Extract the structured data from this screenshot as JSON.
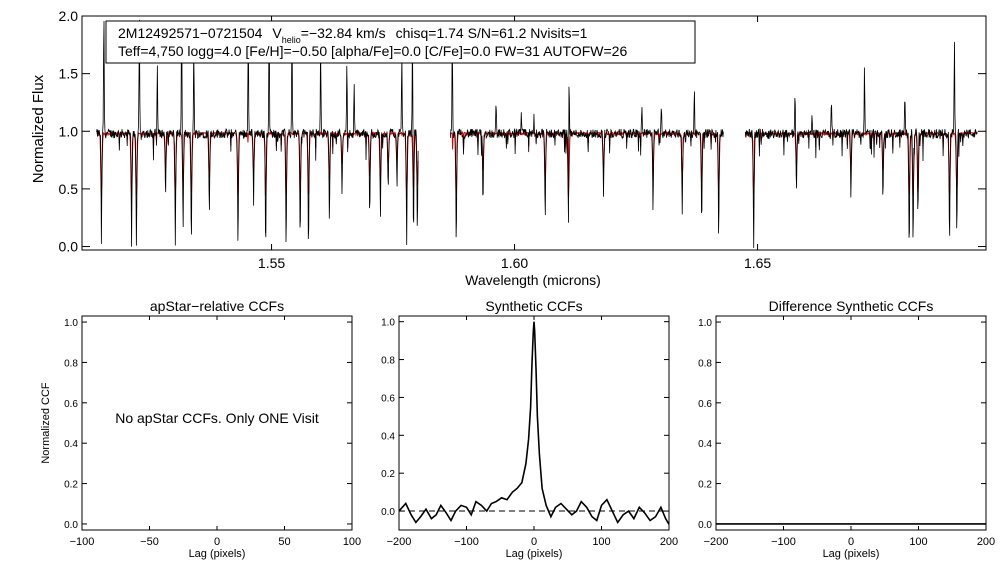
{
  "chart_data": [
    {
      "type": "line",
      "panel": "spectrum",
      "xlabel": "Wavelength (microns)",
      "ylabel": "Normalized Flux",
      "xlim": [
        1.511,
        1.697
      ],
      "ylim": [
        -0.03,
        2.0
      ],
      "xticks": [
        {
          "value": 1.55,
          "label": "1.55"
        },
        {
          "value": 1.6,
          "label": "1.60"
        },
        {
          "value": 1.65,
          "label": "1.65"
        }
      ],
      "yticks": [
        {
          "value": 0.0,
          "label": "0.0"
        },
        {
          "value": 0.5,
          "label": "0.5"
        },
        {
          "value": 1.0,
          "label": "1.0"
        },
        {
          "value": 1.5,
          "label": "1.5"
        },
        {
          "value": 2.0,
          "label": "2.0"
        }
      ],
      "annotation": {
        "star": "2M12492571−0721504",
        "v_label": "V",
        "v_sub": "helio",
        "v_value": "=−32.84 km/s",
        "stats": "chisq=1.74  S/N=61.2  Nvisits=1",
        "params": "Teff=4,750 logg=4.0 [Fe/H]=−0.50 [alpha/Fe]=0.0 [C/Fe]=0.0 FW=31 AUTOFW=26"
      },
      "segments": [
        [
          1.514,
          1.5802
        ],
        [
          1.5868,
          1.643
        ],
        [
          1.6475,
          1.6952
        ]
      ],
      "continuum": 0.98,
      "series": [
        {
          "name": "observed",
          "color": "#000000"
        },
        {
          "name": "model",
          "color": "#dd0000"
        }
      ],
      "absorption_lines": [
        {
          "x": 1.515,
          "depth": 0.95
        },
        {
          "x": 1.5212,
          "depth": 1.0
        },
        {
          "x": 1.5222,
          "depth": 0.98
        },
        {
          "x": 1.5282,
          "depth": 0.55
        },
        {
          "x": 1.5302,
          "depth": 1.0
        },
        {
          "x": 1.5318,
          "depth": 0.85
        },
        {
          "x": 1.5335,
          "depth": 0.98
        },
        {
          "x": 1.5372,
          "depth": 0.7
        },
        {
          "x": 1.5431,
          "depth": 1.0
        },
        {
          "x": 1.5463,
          "depth": 0.6
        },
        {
          "x": 1.5488,
          "depth": 0.95
        },
        {
          "x": 1.553,
          "depth": 0.98
        },
        {
          "x": 1.5559,
          "depth": 0.85
        },
        {
          "x": 1.5576,
          "depth": 1.0
        },
        {
          "x": 1.5619,
          "depth": 0.75
        },
        {
          "x": 1.5645,
          "depth": 0.5
        },
        {
          "x": 1.5702,
          "depth": 0.7
        },
        {
          "x": 1.5724,
          "depth": 0.75
        },
        {
          "x": 1.574,
          "depth": 0.5
        },
        {
          "x": 1.5758,
          "depth": 0.45
        },
        {
          "x": 1.5778,
          "depth": 0.98
        },
        {
          "x": 1.5792,
          "depth": 0.9
        },
        {
          "x": 1.58,
          "depth": 0.85
        },
        {
          "x": 1.588,
          "depth": 0.98
        },
        {
          "x": 1.5935,
          "depth": 0.6
        },
        {
          "x": 1.6063,
          "depth": 0.75
        },
        {
          "x": 1.6111,
          "depth": 1.0
        },
        {
          "x": 1.6183,
          "depth": 0.55
        },
        {
          "x": 1.6285,
          "depth": 0.6
        },
        {
          "x": 1.6345,
          "depth": 0.7
        },
        {
          "x": 1.6385,
          "depth": 0.8
        },
        {
          "x": 1.642,
          "depth": 0.9
        },
        {
          "x": 1.6492,
          "depth": 0.98
        },
        {
          "x": 1.658,
          "depth": 0.5
        },
        {
          "x": 1.6692,
          "depth": 0.55
        },
        {
          "x": 1.6758,
          "depth": 0.6
        },
        {
          "x": 1.6812,
          "depth": 1.0
        },
        {
          "x": 1.682,
          "depth": 1.0
        },
        {
          "x": 1.683,
          "depth": 0.95
        },
        {
          "x": 1.6895,
          "depth": 0.98
        },
        {
          "x": 1.691,
          "depth": 0.9
        }
      ],
      "emission_lines": [
        {
          "x": 1.5155,
          "height": 1.1
        },
        {
          "x": 1.5228,
          "height": 1.0
        },
        {
          "x": 1.5265,
          "height": 0.6
        },
        {
          "x": 1.5315,
          "height": 1.05
        },
        {
          "x": 1.534,
          "height": 0.8
        },
        {
          "x": 1.5452,
          "height": 1.05
        },
        {
          "x": 1.5495,
          "height": 1.1
        },
        {
          "x": 1.5542,
          "height": 1.0
        },
        {
          "x": 1.5601,
          "height": 0.85
        },
        {
          "x": 1.5655,
          "height": 0.65
        },
        {
          "x": 1.567,
          "height": 0.45
        },
        {
          "x": 1.5768,
          "height": 0.7
        },
        {
          "x": 1.579,
          "height": 1.0
        },
        {
          "x": 1.5872,
          "height": 1.0
        },
        {
          "x": 1.5962,
          "height": 0.3
        },
        {
          "x": 1.6014,
          "height": 0.2
        },
        {
          "x": 1.604,
          "height": 0.15
        },
        {
          "x": 1.6112,
          "height": 0.9
        },
        {
          "x": 1.6262,
          "height": 0.25
        },
        {
          "x": 1.6302,
          "height": 0.25
        },
        {
          "x": 1.637,
          "height": 0.4
        },
        {
          "x": 1.6448,
          "height": 1.0
        },
        {
          "x": 1.6577,
          "height": 0.35
        },
        {
          "x": 1.6612,
          "height": 0.15
        },
        {
          "x": 1.6652,
          "height": 0.3
        },
        {
          "x": 1.672,
          "height": 0.6
        },
        {
          "x": 1.6803,
          "height": 0.35
        },
        {
          "x": 1.683,
          "height": 0.25
        },
        {
          "x": 1.6905,
          "height": 0.8
        }
      ]
    },
    {
      "type": "line",
      "panel": "apstar-ccf",
      "title": "apStar−relative CCFs",
      "xlabel": "Lag (pixels)",
      "ylabel": "Normalized CCF",
      "xlim": [
        -100,
        100
      ],
      "ylim": [
        -0.03,
        1.03
      ],
      "xticks": [
        {
          "value": -100,
          "label": "−100"
        },
        {
          "value": -50,
          "label": "−50"
        },
        {
          "value": 0,
          "label": "0"
        },
        {
          "value": 50,
          "label": "50"
        },
        {
          "value": 100,
          "label": "100"
        }
      ],
      "yticks": [
        {
          "value": 0.0,
          "label": "0.0"
        },
        {
          "value": 0.2,
          "label": "0.2"
        },
        {
          "value": 0.4,
          "label": "0.4"
        },
        {
          "value": 0.6,
          "label": "0.6"
        },
        {
          "value": 0.8,
          "label": "0.8"
        },
        {
          "value": 1.0,
          "label": "1.0"
        }
      ],
      "message": "No apStar CCFs.  Only ONE Visit"
    },
    {
      "type": "line",
      "panel": "synthetic-ccf",
      "title": "Synthetic CCFs",
      "xlabel": "Lag (pixels)",
      "xlim": [
        -200,
        200
      ],
      "ylim": [
        -0.1,
        1.03
      ],
      "xticks": [
        {
          "value": -200,
          "label": "−200"
        },
        {
          "value": -100,
          "label": "−100"
        },
        {
          "value": 0,
          "label": "0"
        },
        {
          "value": 100,
          "label": "100"
        },
        {
          "value": 200,
          "label": "200"
        }
      ],
      "yticks": [
        {
          "value": 0.0,
          "label": "0.0"
        },
        {
          "value": 0.2,
          "label": "0.2"
        },
        {
          "value": 0.4,
          "label": "0.4"
        },
        {
          "value": 0.6,
          "label": "0.6"
        },
        {
          "value": 0.8,
          "label": "0.8"
        },
        {
          "value": 1.0,
          "label": "1.0"
        }
      ],
      "baseline": 0.0,
      "series": [
        {
          "name": "ccf",
          "x": [
            -200,
            -190,
            -182,
            -175,
            -168,
            -160,
            -152,
            -145,
            -138,
            -130,
            -123,
            -116,
            -108,
            -100,
            -93,
            -86,
            -78,
            -70,
            -63,
            -56,
            -48,
            -40,
            -32,
            -25,
            -18,
            -12,
            -8,
            -5,
            -3,
            -1,
            0,
            1,
            3,
            5,
            8,
            12,
            18,
            25,
            32,
            40,
            48,
            56,
            63,
            70,
            78,
            86,
            93,
            100,
            108,
            116,
            124,
            132,
            140,
            148,
            156,
            164,
            172,
            180,
            188,
            195,
            200
          ],
          "y": [
            0.0,
            0.04,
            -0.02,
            -0.06,
            -0.03,
            0.01,
            -0.04,
            -0.02,
            0.03,
            -0.01,
            -0.05,
            0.0,
            0.03,
            0.02,
            -0.02,
            0.05,
            0.03,
            0.0,
            0.04,
            0.05,
            0.07,
            0.06,
            0.1,
            0.12,
            0.15,
            0.25,
            0.38,
            0.55,
            0.78,
            0.95,
            1.0,
            0.95,
            0.75,
            0.5,
            0.3,
            0.12,
            0.03,
            -0.03,
            0.02,
            0.04,
            0.01,
            -0.02,
            0.0,
            0.05,
            0.02,
            -0.03,
            -0.05,
            0.03,
            0.06,
            0.0,
            -0.06,
            -0.02,
            0.0,
            -0.04,
            0.02,
            -0.01,
            -0.05,
            -0.03,
            0.02,
            -0.04,
            -0.07
          ]
        }
      ]
    },
    {
      "type": "line",
      "panel": "difference-ccf",
      "title": "Difference Synthetic CCFs",
      "xlabel": "Lag (pixels)",
      "xlim": [
        -200,
        200
      ],
      "ylim": [
        -0.03,
        1.03
      ],
      "xticks": [
        {
          "value": -200,
          "label": "−200"
        },
        {
          "value": -100,
          "label": "−100"
        },
        {
          "value": 0,
          "label": "0"
        },
        {
          "value": 100,
          "label": "100"
        },
        {
          "value": 200,
          "label": "200"
        }
      ],
      "yticks": [
        {
          "value": 0.0,
          "label": "0.0"
        },
        {
          "value": 0.2,
          "label": "0.2"
        },
        {
          "value": 0.4,
          "label": "0.4"
        },
        {
          "value": 0.6,
          "label": "0.6"
        },
        {
          "value": 0.8,
          "label": "0.8"
        },
        {
          "value": 1.0,
          "label": "1.0"
        }
      ],
      "series": [
        {
          "name": "difference",
          "x": [
            -200,
            200
          ],
          "y": [
            0.0,
            0.0
          ]
        }
      ]
    }
  ]
}
